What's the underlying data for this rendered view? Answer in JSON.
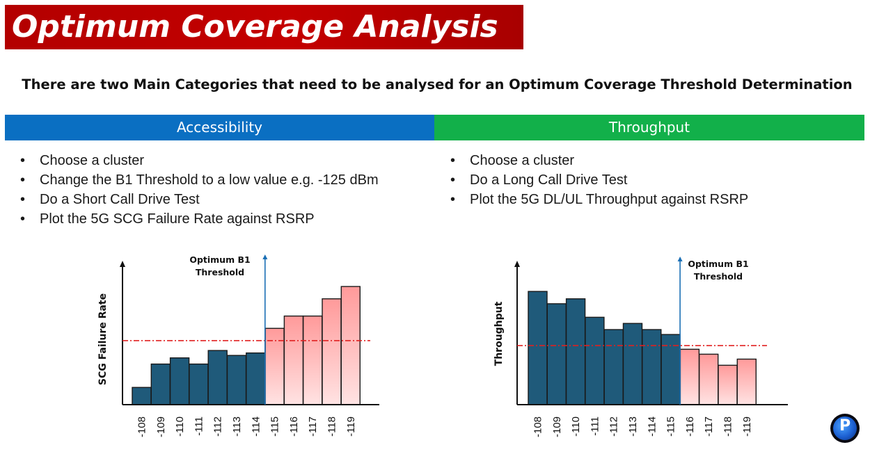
{
  "title": "Optimum Coverage Analysis",
  "subtitle": "There are two Main Categories that need to be analysed for an Optimum Coverage Threshold Determination",
  "sections": {
    "accessibility": {
      "header": "Accessibility",
      "bullets": [
        "Choose a cluster",
        "Change the B1 Threshold to a low value e.g. -125 dBm",
        "Do a Short Call Drive Test",
        "Plot the 5G SCG Failure Rate against RSRP"
      ]
    },
    "throughput": {
      "header": "Throughput",
      "bullets": [
        "Choose a cluster",
        "Do a Long Call Drive Test",
        "Plot the 5G DL/UL Throughput against RSRP"
      ]
    }
  },
  "bullet_symbol": "•",
  "logo": {
    "letter": "P",
    "icon": "brand-logo-icon"
  },
  "colors": {
    "title_banner": "#c00000",
    "accessibility_header": "#0a6fc2",
    "throughput_header": "#12b04a",
    "bar_below": "#1f5a7a",
    "bar_above": "#ffb8b8",
    "threshold_line": "#1a6fb5",
    "reference_line": "#e02020"
  },
  "chart_data": [
    {
      "type": "bar",
      "ylabel": "SCG Failure Rate",
      "categories": [
        "-108",
        "-109",
        "-110",
        "-111",
        "-112",
        "-113",
        "-114",
        "-115",
        "-116",
        "-117",
        "-118",
        "-119"
      ],
      "values": [
        14,
        33,
        38,
        33,
        44,
        40,
        42,
        62,
        72,
        72,
        86,
        96
      ],
      "ylim": [
        0,
        100
      ],
      "reference_line": 52,
      "threshold_after": "-114",
      "annotation": [
        "Optimum B1",
        "Threshold"
      ],
      "grid": false
    },
    {
      "type": "bar",
      "ylabel": "Throughput",
      "categories": [
        "-108",
        "-109",
        "-110",
        "-111",
        "-112",
        "-113",
        "-114",
        "-115",
        "-116",
        "-117",
        "-118",
        "-119"
      ],
      "values": [
        92,
        82,
        86,
        71,
        61,
        66,
        61,
        57,
        45,
        41,
        32,
        37
      ],
      "ylim": [
        0,
        100
      ],
      "reference_line": 48,
      "threshold_after": "-115",
      "annotation": [
        "Optimum B1",
        "Threshold"
      ],
      "grid": false
    }
  ]
}
